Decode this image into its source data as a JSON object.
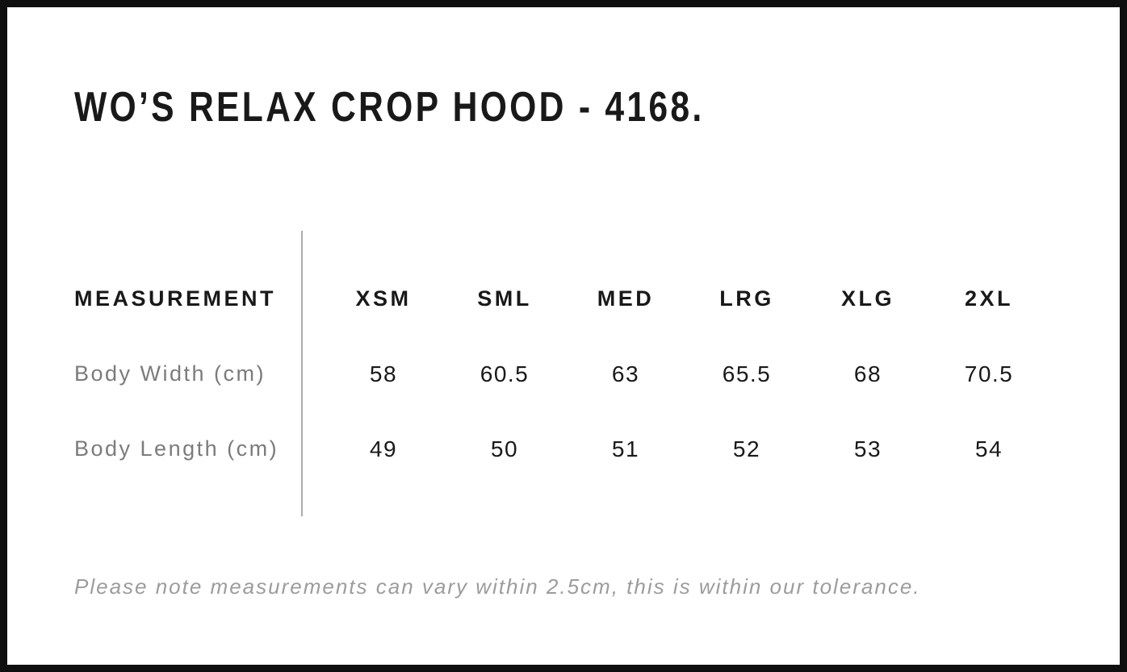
{
  "header": {
    "title": "WO’S RELAX CROP HOOD - 4168."
  },
  "size_chart": {
    "measurement_header": "MEASUREMENT",
    "size_headers": [
      "XSM",
      "SML",
      "MED",
      "LRG",
      "XLG",
      "2XL"
    ],
    "rows": [
      {
        "label": "Body Width (cm)",
        "values": [
          "58",
          "60.5",
          "63",
          "65.5",
          "68",
          "70.5"
        ]
      },
      {
        "label": "Body Length (cm)",
        "values": [
          "49",
          "50",
          "51",
          "52",
          "53",
          "54"
        ]
      }
    ]
  },
  "footer": {
    "note": "Please note measurements can vary within 2.5cm, this is within our tolerance."
  },
  "colors": {
    "background": "#ffffff",
    "frame": "#0f0f0f",
    "heading_text": "#191919",
    "value_text": "#191919",
    "row_label_text": "#7b7b7b",
    "note_text": "#9c9c9c",
    "divider": "#ababab"
  },
  "chart_data": {
    "type": "table",
    "title": "WO’S RELAX CROP HOOD - 4168.",
    "columns": [
      "MEASUREMENT",
      "XSM",
      "SML",
      "MED",
      "LRG",
      "XLG",
      "2XL"
    ],
    "rows": [
      [
        "Body Width (cm)",
        58,
        60.5,
        63,
        65.5,
        68,
        70.5
      ],
      [
        "Body Length (cm)",
        49,
        50,
        51,
        52,
        53,
        54
      ]
    ],
    "footnote": "Please note measurements can vary within 2.5cm, this is within our tolerance.",
    "layout": {
      "grid": false,
      "divider_between_label_and_sizes": true
    }
  }
}
